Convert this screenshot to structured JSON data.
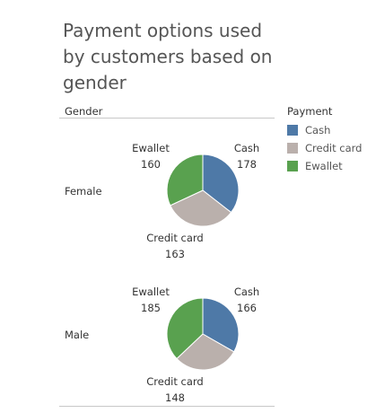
{
  "chart_data": {
    "type": "pie",
    "title": "Payment options used by customers based on gender",
    "column_header": "Gender",
    "legend": {
      "title": "Payment",
      "placement": "right",
      "entries": [
        {
          "name": "Cash",
          "color": "#4e79a7"
        },
        {
          "name": "Credit card",
          "color": "#bab0ac"
        },
        {
          "name": "Ewallet",
          "color": "#59a14f"
        }
      ]
    },
    "categories": [
      "Cash",
      "Credit card",
      "Ewallet"
    ],
    "series": [
      {
        "name": "Female",
        "values": [
          178,
          163,
          160
        ]
      },
      {
        "name": "Male",
        "values": [
          166,
          148,
          185
        ]
      }
    ]
  }
}
